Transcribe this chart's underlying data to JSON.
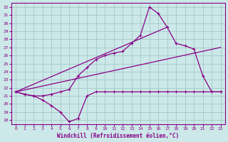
{
  "xlabel": "Windchill (Refroidissement éolien,°C)",
  "background_color": "#cce8e8",
  "grid_color": "#aacccc",
  "line_color": "#880088",
  "x_ticks": [
    0,
    1,
    2,
    3,
    4,
    5,
    6,
    7,
    8,
    9,
    10,
    11,
    12,
    13,
    14,
    15,
    16,
    17,
    18,
    19,
    20,
    21,
    22,
    23
  ],
  "y_ticks": [
    18,
    19,
    20,
    21,
    22,
    23,
    24,
    25,
    26,
    27,
    28,
    29,
    30,
    31,
    32
  ],
  "ylim": [
    17.5,
    32.5
  ],
  "xlim": [
    -0.5,
    23.5
  ],
  "curve1_x": [
    0,
    1,
    2,
    3,
    4,
    5,
    6,
    7,
    8,
    9,
    10,
    11,
    12,
    13,
    14,
    15,
    16,
    17,
    18,
    19,
    20,
    21,
    22,
    23
  ],
  "curve1_y": [
    21.5,
    21.2,
    21.0,
    20.5,
    19.8,
    19.0,
    17.8,
    18.2,
    21.0,
    21.5,
    21.5,
    21.5,
    21.5,
    21.5,
    21.5,
    21.5,
    21.5,
    21.5,
    21.5,
    21.5,
    21.5,
    21.5,
    21.5,
    21.5
  ],
  "curve2_x": [
    0,
    1,
    2,
    3,
    4,
    5,
    6,
    7,
    8,
    9,
    10,
    11,
    12,
    13,
    14,
    15,
    16,
    17,
    18,
    19,
    20,
    21,
    22,
    23
  ],
  "curve2_y": [
    21.5,
    21.2,
    21.0,
    21.0,
    21.2,
    21.5,
    21.8,
    23.5,
    24.5,
    25.5,
    26.0,
    26.3,
    26.5,
    27.5,
    28.5,
    32.0,
    31.2,
    29.5,
    27.5,
    27.2,
    26.8,
    23.5,
    21.5,
    21.5
  ],
  "line1_x": [
    0,
    17
  ],
  "line1_y": [
    21.5,
    29.5
  ],
  "line2_x": [
    0,
    23
  ],
  "line2_y": [
    21.5,
    27.0
  ]
}
